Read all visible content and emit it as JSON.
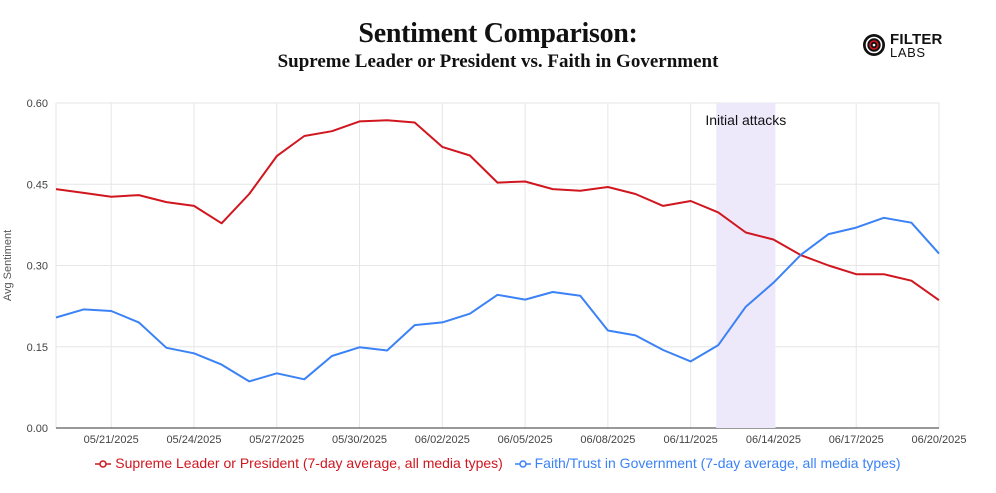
{
  "header": {
    "title": "Sentiment Comparison:",
    "subtitle": "Supreme Leader or President vs. Faith in Government"
  },
  "logo": {
    "line1": "FILTER",
    "line2": "LABS",
    "icon": "target-icon"
  },
  "colors": {
    "series1": "#d0161f",
    "series2": "#3b82f6",
    "highlight": "#ede9fb",
    "grid": "#e6e6e6"
  },
  "chart_data": {
    "type": "line",
    "ylabel": "Avg Sentiment",
    "xlabel": "",
    "ylim": [
      0,
      0.6
    ],
    "yticks": [
      "0.00",
      "0.15",
      "0.30",
      "0.45",
      "0.60"
    ],
    "x": [
      "05/19/2025",
      "05/20/2025",
      "05/21/2025",
      "05/22/2025",
      "05/23/2025",
      "05/24/2025",
      "05/25/2025",
      "05/26/2025",
      "05/27/2025",
      "05/28/2025",
      "05/29/2025",
      "05/30/2025",
      "05/31/2025",
      "06/01/2025",
      "06/02/2025",
      "06/03/2025",
      "06/04/2025",
      "06/05/2025",
      "06/06/2025",
      "06/07/2025",
      "06/08/2025",
      "06/09/2025",
      "06/10/2025",
      "06/11/2025",
      "06/12/2025",
      "06/13/2025",
      "06/14/2025",
      "06/15/2025",
      "06/16/2025",
      "06/17/2025",
      "06/18/2025",
      "06/19/2025",
      "06/20/2025"
    ],
    "xticks": [
      "05/21/2025",
      "05/24/2025",
      "05/27/2025",
      "05/30/2025",
      "06/02/2025",
      "06/05/2025",
      "06/08/2025",
      "06/11/2025",
      "06/14/2025",
      "06/17/2025",
      "06/20/2025"
    ],
    "series": [
      {
        "name": "Supreme Leader or President (7-day average, all media types)",
        "values": [
          0.441,
          0.434,
          0.427,
          0.43,
          0.417,
          0.41,
          0.378,
          0.432,
          0.502,
          0.539,
          0.548,
          0.566,
          0.568,
          0.564,
          0.519,
          0.503,
          0.453,
          0.455,
          0.441,
          0.438,
          0.445,
          0.432,
          0.41,
          0.419,
          0.398,
          0.361,
          0.348,
          0.319,
          0.3,
          0.284,
          0.284,
          0.272,
          0.236
        ]
      },
      {
        "name": "Faith/Trust in Government (7-day average, all media types)",
        "values": [
          0.204,
          0.219,
          0.216,
          0.195,
          0.148,
          0.138,
          0.117,
          0.086,
          0.101,
          0.09,
          0.133,
          0.149,
          0.143,
          0.19,
          0.195,
          0.211,
          0.246,
          0.237,
          0.251,
          0.244,
          0.18,
          0.171,
          0.144,
          0.123,
          0.153,
          0.224,
          0.268,
          0.32,
          0.358,
          0.37,
          0.388,
          0.379,
          0.322
        ]
      }
    ],
    "annotation": {
      "text": "Initial attacks",
      "from": "06/12/2025",
      "to": "06/14/2025"
    },
    "grid": true,
    "legend": "bottom-center"
  }
}
